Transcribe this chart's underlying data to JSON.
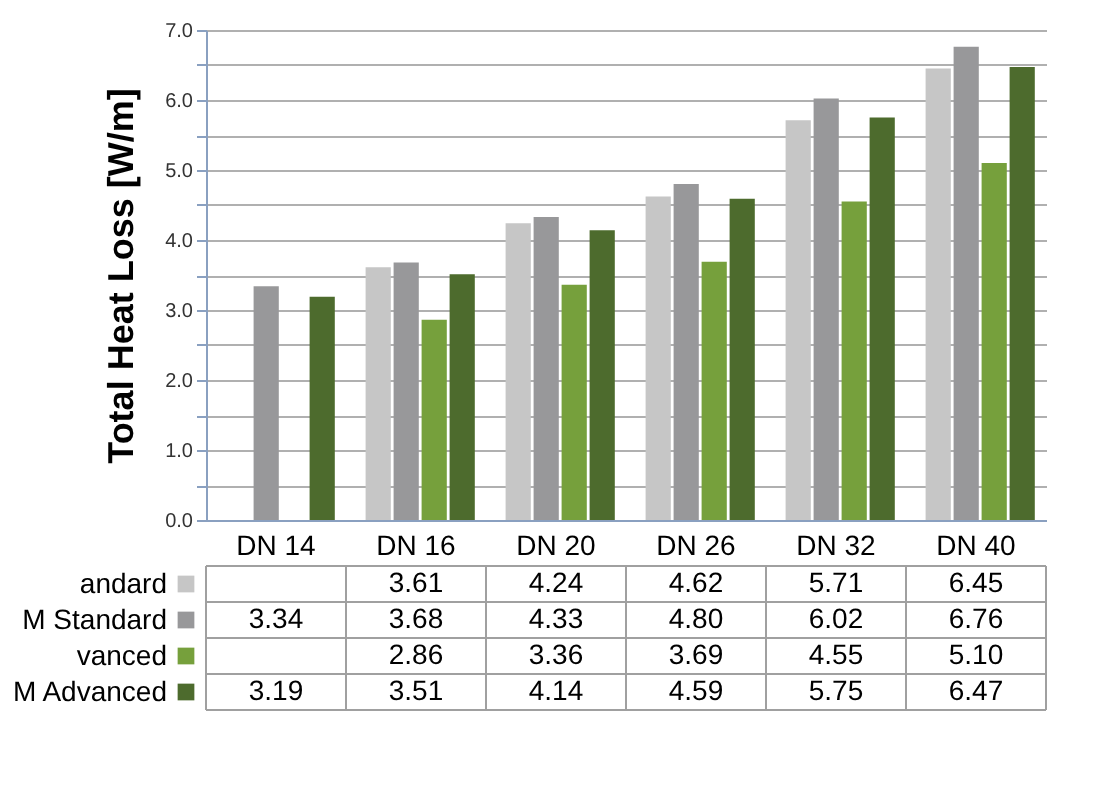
{
  "chart_data": {
    "type": "bar",
    "ylabel": "Total Heat Loss [W/m]",
    "categories": [
      "DN 14",
      "DN 16",
      "DN 20",
      "DN 26",
      "DN 32",
      "DN 40"
    ],
    "series": [
      {
        "name": "andard",
        "color": "#c6c6c6",
        "values": [
          null,
          3.61,
          4.24,
          4.62,
          5.71,
          6.45
        ],
        "value_labels": [
          null,
          "3.61",
          "4.24",
          "4.62",
          "5.71",
          "6.45"
        ]
      },
      {
        "name": "M Standard",
        "color": "#98989a",
        "values": [
          3.34,
          3.68,
          4.33,
          4.8,
          6.02,
          6.76
        ],
        "value_labels": [
          "3.34",
          "3.68",
          "4.33",
          "4.80",
          "6.02",
          "6.76"
        ]
      },
      {
        "name": "vanced",
        "color": "#76a03c",
        "values": [
          null,
          2.86,
          3.36,
          3.69,
          4.55,
          5.1
        ],
        "value_labels": [
          null,
          "2.86",
          "3.36",
          "3.69",
          "4.55",
          "5.10"
        ]
      },
      {
        "name": "M Advanced",
        "color": "#4d6b2d",
        "values": [
          3.19,
          3.51,
          4.14,
          4.59,
          5.75,
          6.47
        ],
        "value_labels": [
          "3.19",
          "3.51",
          "4.14",
          "4.59",
          "5.75",
          "6.47"
        ]
      }
    ],
    "ylim": [
      0,
      7
    ],
    "yticks": [
      {
        "value": 0,
        "label": "0.0"
      },
      {
        "value": 0.5,
        "label": null
      },
      {
        "value": 1,
        "label": "1.0"
      },
      {
        "value": 1.5,
        "label": null
      },
      {
        "value": 2,
        "label": "2.0"
      },
      {
        "value": 2.5,
        "label": null
      },
      {
        "value": 3,
        "label": "3.0"
      },
      {
        "value": 3.5,
        "label": null
      },
      {
        "value": 4,
        "label": "4.0"
      },
      {
        "value": 4.5,
        "label": null
      },
      {
        "value": 5,
        "label": "5.0"
      },
      {
        "value": 5.5,
        "label": null
      },
      {
        "value": 6,
        "label": "6.0"
      },
      {
        "value": 6.5,
        "label": null
      },
      {
        "value": 7,
        "label": "7.0"
      }
    ],
    "grid": "y",
    "legend": "bottom"
  }
}
